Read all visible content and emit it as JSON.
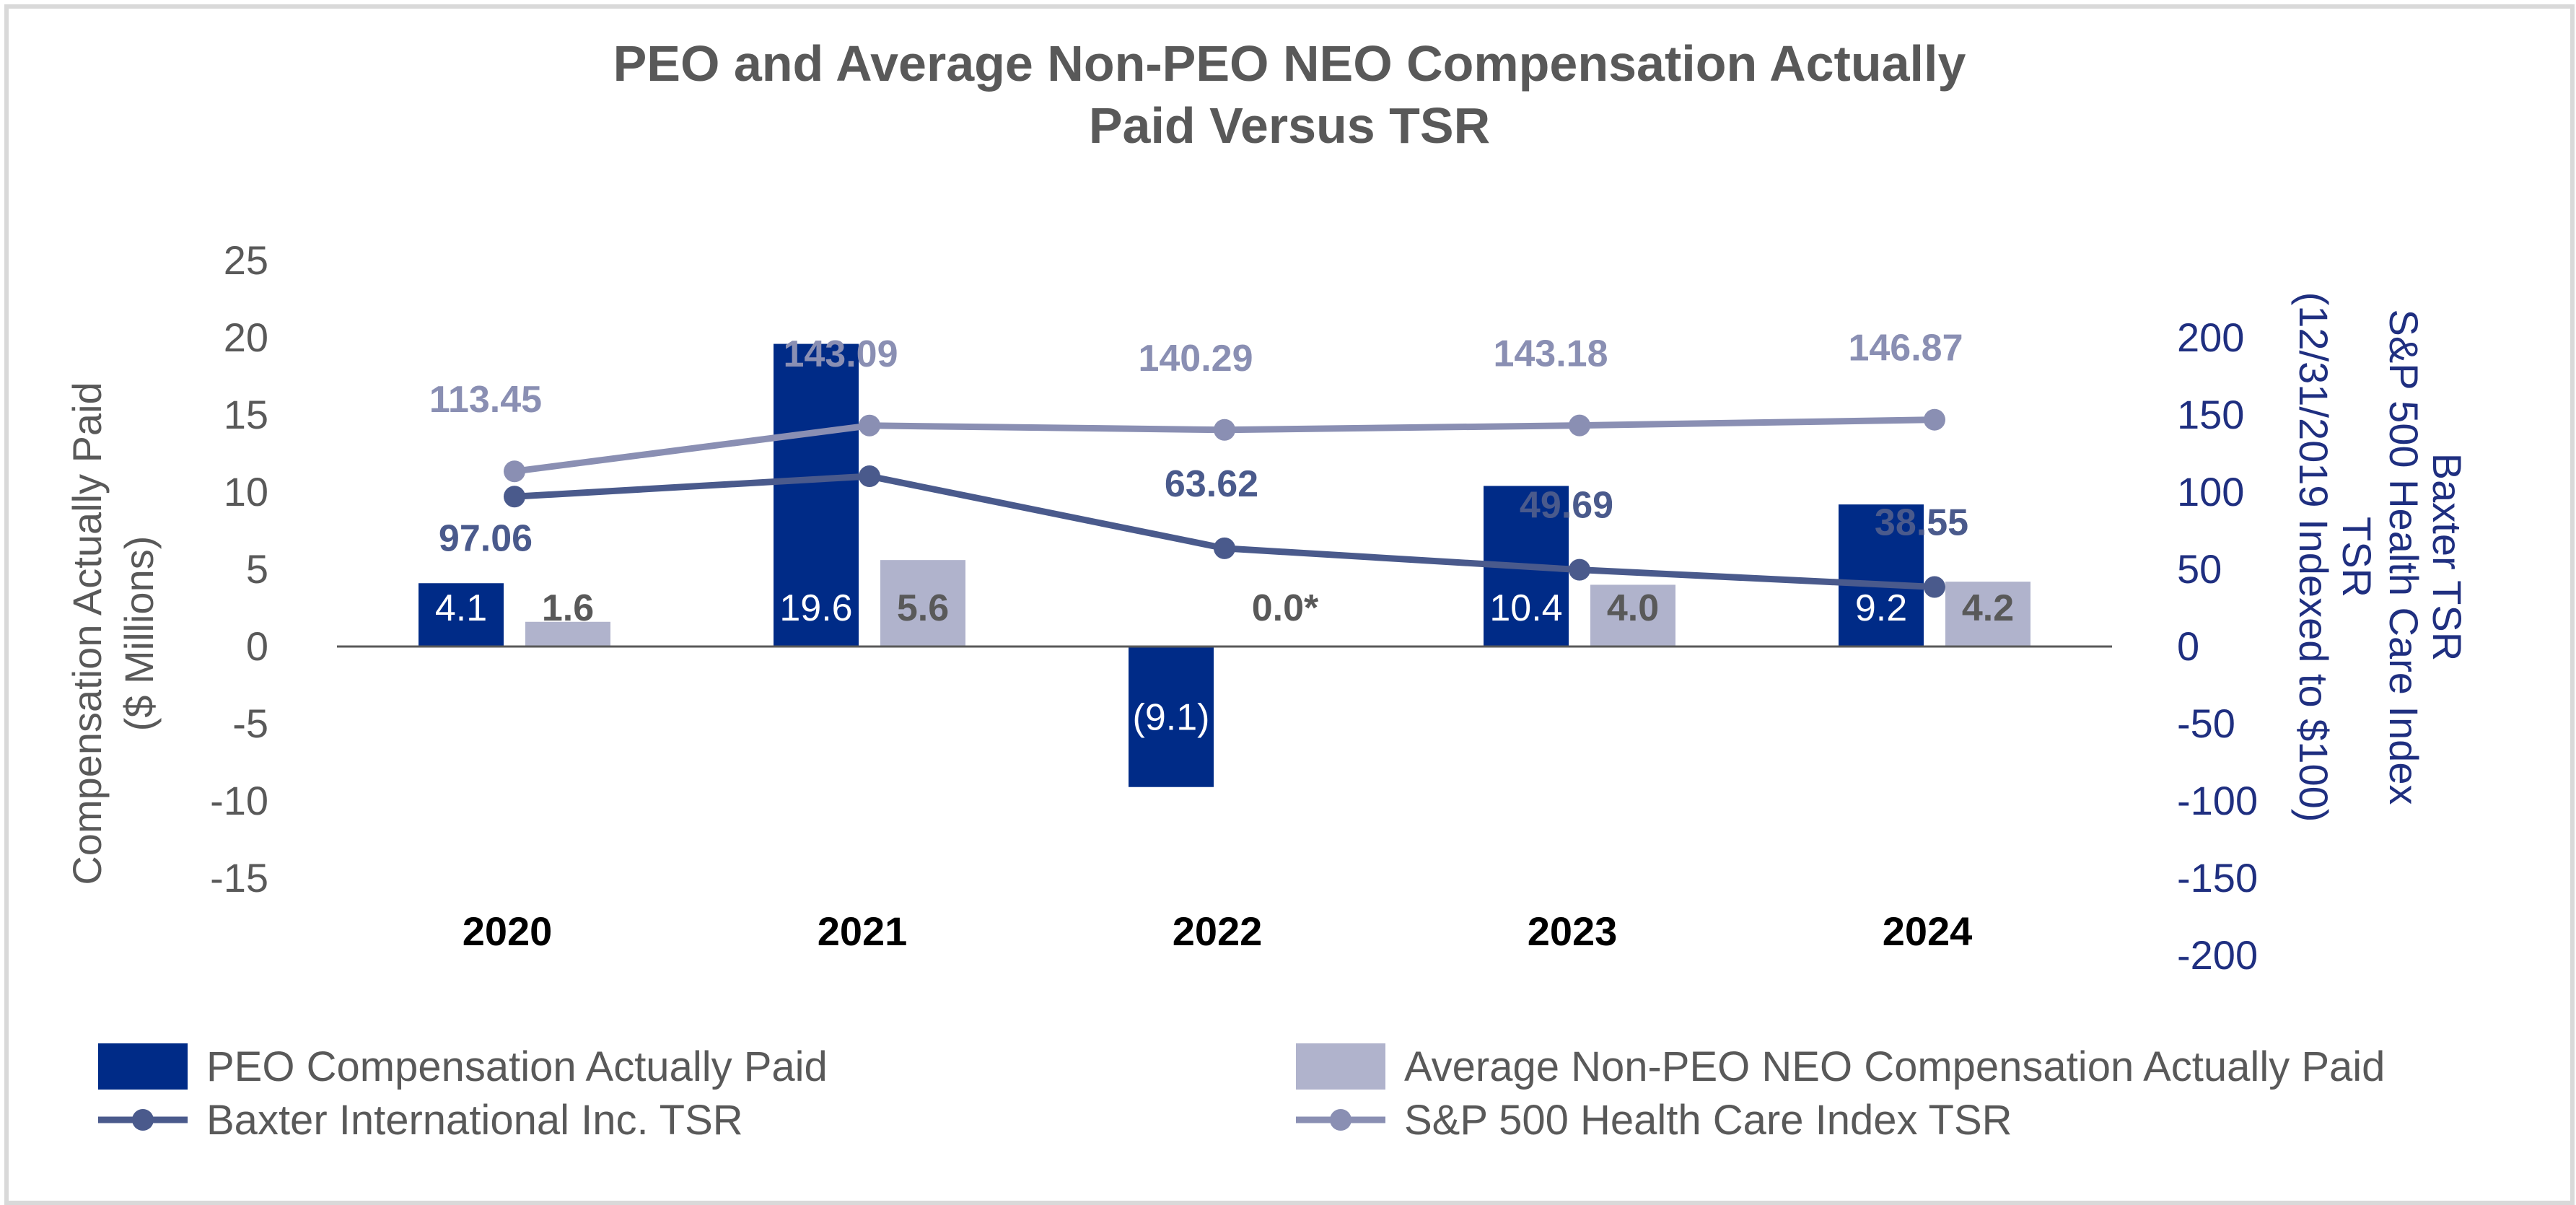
{
  "chart_data": {
    "type": "bar",
    "title_line1": "PEO and Average Non-PEO NEO Compensation Actually",
    "title_line2": "Paid Versus TSR",
    "categories": [
      "2020",
      "2021",
      "2022",
      "2023",
      "2024"
    ],
    "y_left": {
      "label_line1": "Compensation Actually Paid",
      "label_line2": "($ Millions)",
      "ylim": [
        -15,
        25
      ],
      "ticks": [
        25,
        20,
        15,
        10,
        5,
        0,
        -5,
        -10,
        -15
      ]
    },
    "y_right": {
      "label_col1_line1": "Baxter TSR",
      "label_col1_line2": "S&P 500 Health Care Index",
      "label_col2_line1": "TSR",
      "label_col2_line2": "(12/31/2019 Indexed to $100)",
      "ylim": [
        -200,
        200
      ],
      "ticks": [
        200,
        150,
        100,
        50,
        0,
        -50,
        -100,
        -150,
        -200
      ]
    },
    "bar_series": [
      {
        "name": "PEO Compensation Actually Paid",
        "color": "#002b87",
        "values": [
          4.1,
          19.6,
          -9.1,
          10.4,
          9.2
        ],
        "labels": [
          "4.1",
          "19.6",
          "(9.1)",
          "10.4",
          "9.2"
        ]
      },
      {
        "name": "Average Non-PEO NEO Compensation Actually Paid",
        "color": "#b0b3cc",
        "values": [
          1.6,
          5.6,
          0.0,
          4.0,
          4.2
        ],
        "labels": [
          "1.6",
          "5.6",
          "0.0*",
          "4.0",
          "4.2"
        ]
      }
    ],
    "line_series": [
      {
        "name": "Baxter International Inc. TSR",
        "color": "#4a5a8c",
        "values": [
          97.06,
          110.3,
          63.62,
          49.69,
          38.55
        ],
        "labels": [
          "97.06",
          "",
          "63.62",
          "49.69",
          "38.55"
        ]
      },
      {
        "name": "S&P 500 Health Care Index TSR",
        "color": "#8a8fb3",
        "values": [
          113.45,
          143.09,
          140.29,
          143.18,
          146.87
        ],
        "labels": [
          "113.45",
          "143.09",
          "140.29",
          "143.18",
          "146.87"
        ]
      }
    ],
    "legend": [
      {
        "name": "PEO Compensation Actually Paid",
        "kind": "bar",
        "color": "#002b87"
      },
      {
        "name": "Average Non-PEO NEO Compensation Actually Paid",
        "kind": "bar",
        "color": "#b0b3cc"
      },
      {
        "name": "Baxter International Inc. TSR",
        "kind": "line",
        "color": "#4a5a8c"
      },
      {
        "name": "S&P 500 Health Care Index TSR",
        "kind": "line",
        "color": "#8a8fb3"
      }
    ]
  }
}
